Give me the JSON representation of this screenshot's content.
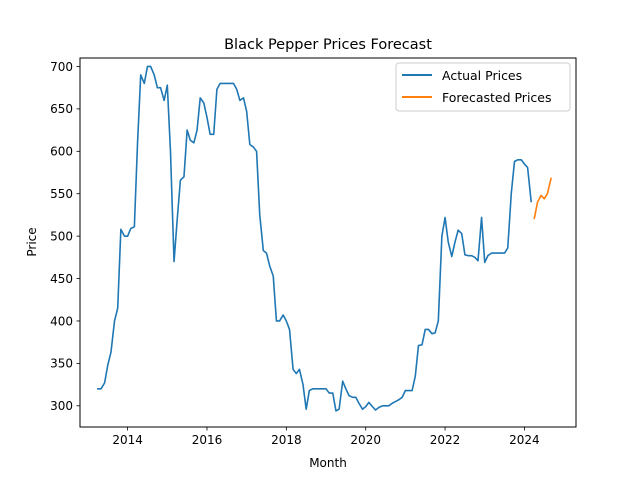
{
  "chart_data": {
    "type": "line",
    "title": "Black Pepper Prices Forecast",
    "xlabel": "Month",
    "ylabel": "Price",
    "x_ticks": [
      "2014",
      "2016",
      "2018",
      "2020",
      "2022",
      "2024"
    ],
    "y_ticks": [
      "300",
      "350",
      "400",
      "450",
      "500",
      "550",
      "600",
      "650",
      "700"
    ],
    "xlim": [
      2012.8,
      2025.3
    ],
    "ylim": [
      275,
      710
    ],
    "grid": false,
    "legend_position": "top-right",
    "series": [
      {
        "name": "Actual Prices",
        "color": "#1f77b4",
        "points": [
          [
            2013.25,
            320
          ],
          [
            2013.33,
            320
          ],
          [
            2013.42,
            327
          ],
          [
            2013.5,
            348
          ],
          [
            2013.58,
            363
          ],
          [
            2013.67,
            400
          ],
          [
            2013.75,
            415
          ],
          [
            2013.83,
            508
          ],
          [
            2013.92,
            500
          ],
          [
            2014.0,
            500
          ],
          [
            2014.08,
            509
          ],
          [
            2014.17,
            511
          ],
          [
            2014.25,
            610
          ],
          [
            2014.33,
            690
          ],
          [
            2014.42,
            680
          ],
          [
            2014.5,
            700
          ],
          [
            2014.58,
            700
          ],
          [
            2014.67,
            690
          ],
          [
            2014.75,
            675
          ],
          [
            2014.83,
            675
          ],
          [
            2014.92,
            660
          ],
          [
            2015.0,
            678
          ],
          [
            2015.08,
            600
          ],
          [
            2015.17,
            470
          ],
          [
            2015.25,
            520
          ],
          [
            2015.33,
            566
          ],
          [
            2015.42,
            570
          ],
          [
            2015.5,
            625
          ],
          [
            2015.58,
            613
          ],
          [
            2015.67,
            610
          ],
          [
            2015.75,
            625
          ],
          [
            2015.83,
            663
          ],
          [
            2015.92,
            657
          ],
          [
            2016.0,
            640
          ],
          [
            2016.08,
            620
          ],
          [
            2016.17,
            620
          ],
          [
            2016.25,
            673
          ],
          [
            2016.33,
            680
          ],
          [
            2016.42,
            680
          ],
          [
            2016.5,
            680
          ],
          [
            2016.58,
            680
          ],
          [
            2016.67,
            680
          ],
          [
            2016.75,
            673
          ],
          [
            2016.83,
            660
          ],
          [
            2016.92,
            663
          ],
          [
            2017.0,
            647
          ],
          [
            2017.08,
            608
          ],
          [
            2017.17,
            605
          ],
          [
            2017.25,
            600
          ],
          [
            2017.33,
            525
          ],
          [
            2017.42,
            483
          ],
          [
            2017.5,
            480
          ],
          [
            2017.58,
            465
          ],
          [
            2017.67,
            453
          ],
          [
            2017.75,
            400
          ],
          [
            2017.83,
            400
          ],
          [
            2017.92,
            407
          ],
          [
            2018.0,
            400
          ],
          [
            2018.08,
            390
          ],
          [
            2018.17,
            343
          ],
          [
            2018.25,
            338
          ],
          [
            2018.33,
            343
          ],
          [
            2018.42,
            325
          ],
          [
            2018.5,
            296
          ],
          [
            2018.58,
            318
          ],
          [
            2018.67,
            320
          ],
          [
            2018.75,
            320
          ],
          [
            2018.83,
            320
          ],
          [
            2018.92,
            320
          ],
          [
            2019.0,
            320
          ],
          [
            2019.08,
            315
          ],
          [
            2019.17,
            315
          ],
          [
            2019.25,
            294
          ],
          [
            2019.33,
            296
          ],
          [
            2019.42,
            329
          ],
          [
            2019.5,
            320
          ],
          [
            2019.58,
            312
          ],
          [
            2019.67,
            310
          ],
          [
            2019.75,
            310
          ],
          [
            2019.83,
            303
          ],
          [
            2019.92,
            296
          ],
          [
            2020.0,
            299
          ],
          [
            2020.08,
            304
          ],
          [
            2020.17,
            299
          ],
          [
            2020.25,
            295
          ],
          [
            2020.33,
            298
          ],
          [
            2020.42,
            300
          ],
          [
            2020.5,
            300
          ],
          [
            2020.58,
            300
          ],
          [
            2020.67,
            303
          ],
          [
            2020.75,
            305
          ],
          [
            2020.83,
            307
          ],
          [
            2020.92,
            310
          ],
          [
            2021.0,
            318
          ],
          [
            2021.08,
            318
          ],
          [
            2021.17,
            318
          ],
          [
            2021.25,
            335
          ],
          [
            2021.33,
            371
          ],
          [
            2021.42,
            372
          ],
          [
            2021.5,
            390
          ],
          [
            2021.58,
            390
          ],
          [
            2021.67,
            385
          ],
          [
            2021.75,
            386
          ],
          [
            2021.83,
            400
          ],
          [
            2021.92,
            500
          ],
          [
            2022.0,
            522
          ],
          [
            2022.08,
            493
          ],
          [
            2022.17,
            476
          ],
          [
            2022.25,
            493
          ],
          [
            2022.33,
            507
          ],
          [
            2022.42,
            503
          ],
          [
            2022.5,
            478
          ],
          [
            2022.58,
            477
          ],
          [
            2022.67,
            477
          ],
          [
            2022.75,
            475
          ],
          [
            2022.83,
            471
          ],
          [
            2022.92,
            522
          ],
          [
            2023.0,
            469
          ],
          [
            2023.08,
            477
          ],
          [
            2023.17,
            480
          ],
          [
            2023.25,
            480
          ],
          [
            2023.33,
            480
          ],
          [
            2023.42,
            480
          ],
          [
            2023.5,
            480
          ],
          [
            2023.58,
            486
          ],
          [
            2023.67,
            551
          ],
          [
            2023.75,
            588
          ],
          [
            2023.83,
            590
          ],
          [
            2023.92,
            590
          ],
          [
            2024.0,
            585
          ],
          [
            2024.08,
            581
          ],
          [
            2024.17,
            541
          ]
        ]
      },
      {
        "name": "Forecasted Prices",
        "color": "#ff7f0e",
        "points": [
          [
            2024.25,
            521
          ],
          [
            2024.33,
            540
          ],
          [
            2024.42,
            548
          ],
          [
            2024.5,
            544
          ],
          [
            2024.58,
            550
          ],
          [
            2024.67,
            568
          ]
        ]
      }
    ]
  }
}
